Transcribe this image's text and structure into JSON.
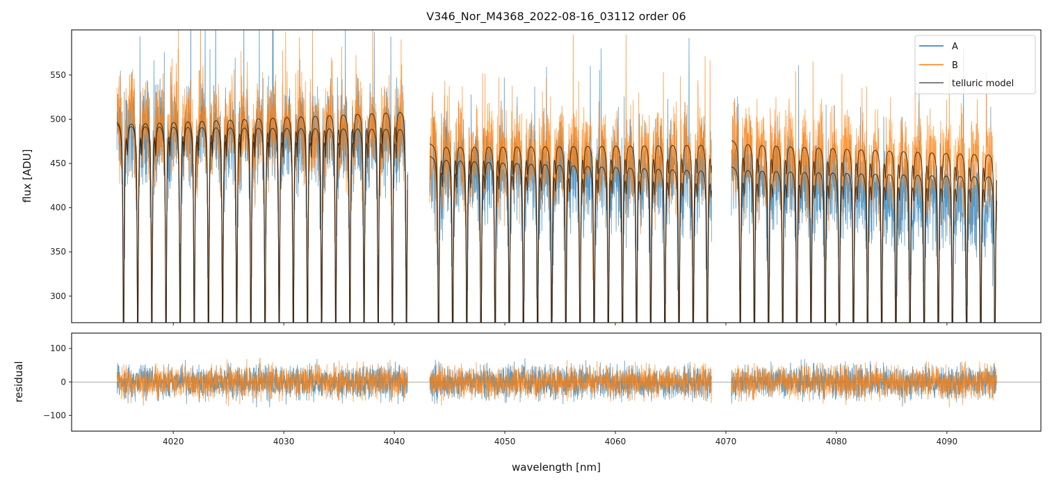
{
  "chart_data": [
    {
      "type": "line",
      "panel": "top",
      "title": "V346_Nor_M4368_2022-08-16_03112  order 06",
      "xlabel": "",
      "ylabel": "flux [ADU]",
      "xlim": [
        4010.8,
        4098.5
      ],
      "ylim": [
        270,
        601
      ],
      "yticks": [
        300,
        350,
        400,
        450,
        500,
        550
      ],
      "xticks": [
        4020,
        4030,
        4040,
        4050,
        4060,
        4070,
        4080,
        4090
      ],
      "grid": false,
      "legend": {
        "position": "top-right",
        "entries": [
          "A",
          "B",
          "telluric model"
        ]
      },
      "segments_nm": [
        [
          4014.9,
          4041.2
        ],
        [
          4043.2,
          4068.7
        ],
        [
          4070.5,
          4094.5
        ]
      ],
      "series": [
        {
          "name": "A",
          "color": "#1f77b4",
          "continuum_by_segment": [
            [
              495,
              490
            ],
            [
              455,
              445
            ],
            [
              450,
              415
            ]
          ],
          "noise_adu": 45
        },
        {
          "name": "B",
          "color": "#ff7f0e",
          "continuum_by_segment": [
            [
              510,
              500
            ],
            [
              478,
              470
            ],
            [
              478,
              460
            ]
          ],
          "noise_adu": 45
        },
        {
          "name": "telluric model",
          "color": "#3a2410",
          "curves_by_segment": [
            [
              [
                500,
                515
              ],
              [
                498,
                495
              ]
            ],
            [
              [
                474,
                477
              ],
              [
                460,
                447
              ]
            ],
            [
              [
                478,
                465
              ],
              [
                448,
                440
              ]
            ]
          ]
        }
      ]
    },
    {
      "type": "line",
      "panel": "bottom",
      "xlabel": "wavelength [nm]",
      "ylabel": "residual",
      "xlim": [
        4010.8,
        4098.5
      ],
      "ylim": [
        -147,
        146
      ],
      "yticks": [
        -100,
        0,
        100
      ],
      "xticks": [
        4020,
        4030,
        4040,
        4050,
        4060,
        4070,
        4080,
        4090
      ],
      "zero_line": 0,
      "series": [
        {
          "name": "A",
          "color": "#1f77b4",
          "noise_adu": 45
        },
        {
          "name": "B",
          "color": "#ff7f0e",
          "noise_adu": 45
        }
      ]
    }
  ]
}
